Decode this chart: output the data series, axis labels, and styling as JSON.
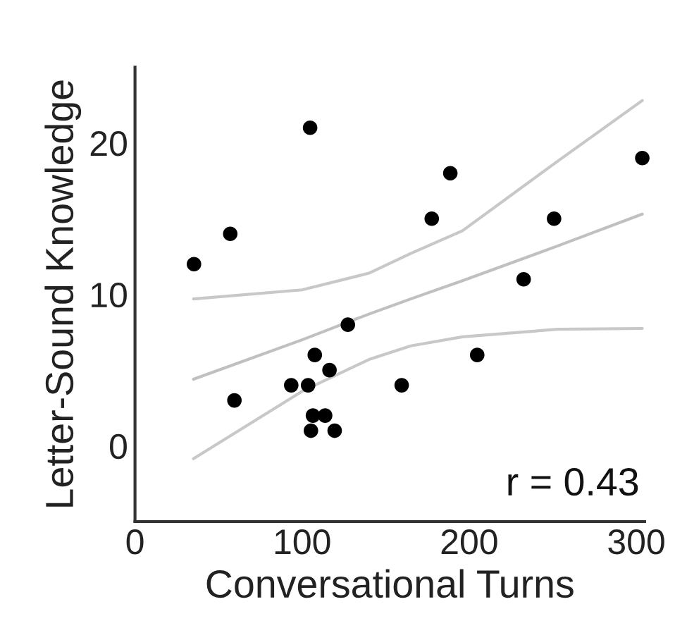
{
  "chart_data": {
    "type": "scatter",
    "xlabel": "Conversational Turns",
    "ylabel": "Letter-Sound Knowledge",
    "series": [
      {
        "color": "#000000",
        "marker": "circle",
        "x": [
          35.3,
          57,
          59.5,
          104.8,
          127.4,
          107.6,
          116.4,
          93.5,
          103.6,
          159.6,
          106.5,
          113.8,
          105.3,
          119.5,
          188.7,
          177.6,
          250.8,
          303.6,
          232.6,
          204.8
        ],
        "values": [
          12,
          14,
          3,
          21,
          8,
          6,
          5,
          4,
          4,
          4,
          2,
          2,
          1,
          1,
          18,
          15,
          15,
          19,
          11,
          6
        ]
      },
      {
        "type": "line",
        "color": "#c0c0c0",
        "x": [
          35,
          100,
          140,
          165,
          196,
          253,
          303.6
        ],
        "values": [
          4.4,
          7.0,
          8.7,
          9.7,
          10.9,
          13.2,
          15.3
        ]
      },
      {
        "type": "line",
        "color": "#c8c8c8",
        "x": [
          35,
          100,
          140,
          165,
          196,
          253,
          303.6
        ],
        "values": [
          9.7,
          10.3,
          11.4,
          12.7,
          14.2,
          18.8,
          22.8
        ]
      },
      {
        "type": "line",
        "color": "#c8c8c8",
        "x": [
          35,
          100,
          140,
          165,
          196,
          253,
          303.6
        ],
        "values": [
          -0.85,
          3.6,
          5.7,
          6.6,
          7.2,
          7.7,
          7.75
        ]
      }
    ],
    "annotations": [
      {
        "text": "r = 0.43"
      }
    ],
    "xlim": [
      0,
      305
    ],
    "ylim": [
      -5,
      25
    ],
    "xticks": [
      0,
      100,
      200,
      300
    ],
    "yticks": [
      0,
      10,
      20
    ],
    "grid": false,
    "legend": false
  }
}
